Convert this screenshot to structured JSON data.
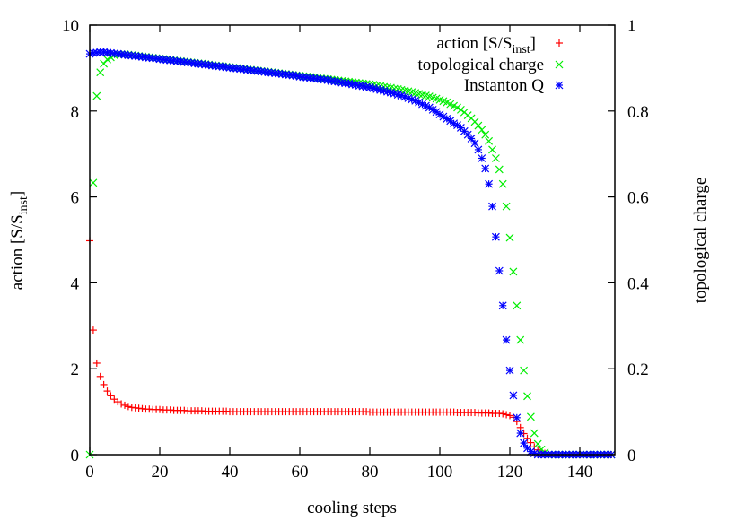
{
  "chart_data": {
    "type": "scatter",
    "xlabel": "cooling steps",
    "ylabel": {
      "main": "action [S/S",
      "sub": "inst",
      "end": "]"
    },
    "y2label": "topological charge",
    "xlim": [
      0,
      150
    ],
    "ylim": [
      0,
      10
    ],
    "y2lim": [
      0,
      1
    ],
    "grid": false,
    "legend_placement": "top-right",
    "x_ticks": [
      "0",
      "20",
      "40",
      "60",
      "80",
      "100",
      "120",
      "140"
    ],
    "x_tick_values": [
      0,
      20,
      40,
      60,
      80,
      100,
      120,
      140
    ],
    "y_ticks": [
      "0",
      "2",
      "4",
      "6",
      "8",
      "10"
    ],
    "y_tick_values": [
      0,
      2,
      4,
      6,
      8,
      10
    ],
    "y2_ticks": [
      "0",
      "0.2",
      "0.4",
      "0.6",
      "0.8",
      "1"
    ],
    "y2_tick_values": [
      0,
      0.2,
      0.4,
      0.6,
      0.8,
      1
    ],
    "x_start": 0,
    "x_step": 1,
    "series": [
      {
        "name": {
          "main": "action [S/S",
          "sub": "inst",
          "end": "]"
        },
        "axis": "y",
        "marker": "plus",
        "color": "#ff0000",
        "values": [
          4.98,
          2.9,
          2.13,
          1.82,
          1.63,
          1.48,
          1.37,
          1.29,
          1.23,
          1.18,
          1.15,
          1.12,
          1.1,
          1.09,
          1.08,
          1.07,
          1.06,
          1.06,
          1.05,
          1.05,
          1.05,
          1.04,
          1.04,
          1.04,
          1.03,
          1.03,
          1.03,
          1.03,
          1.02,
          1.02,
          1.02,
          1.02,
          1.02,
          1.01,
          1.01,
          1.01,
          1.01,
          1.01,
          1.01,
          1.01,
          1.0,
          1.0,
          1.0,
          1.0,
          1.0,
          1.0,
          1.0,
          1.0,
          1.0,
          1.0,
          1.0,
          1.0,
          1.0,
          1.0,
          1.0,
          1.0,
          1.0,
          1.0,
          1.0,
          1.0,
          1.0,
          1.0,
          1.0,
          1.0,
          1.0,
          1.0,
          1.0,
          1.0,
          1.0,
          1.0,
          1.0,
          1.0,
          1.0,
          1.0,
          1.0,
          1.0,
          1.0,
          1.0,
          1.0,
          1.0,
          0.99,
          0.99,
          0.99,
          0.99,
          0.99,
          0.99,
          0.99,
          0.99,
          0.99,
          0.99,
          0.99,
          0.99,
          0.99,
          0.99,
          0.99,
          0.99,
          0.99,
          0.99,
          0.99,
          0.99,
          0.99,
          0.99,
          0.99,
          0.99,
          0.99,
          0.98,
          0.98,
          0.98,
          0.98,
          0.98,
          0.98,
          0.97,
          0.97,
          0.97,
          0.97,
          0.96,
          0.96,
          0.96,
          0.95,
          0.93,
          0.91,
          0.87,
          0.77,
          0.63,
          0.49,
          0.38,
          0.28,
          0.18,
          0.11,
          0.06,
          0.03,
          0.01,
          0,
          0,
          0,
          0,
          0,
          0,
          0,
          0,
          0,
          0,
          0,
          0,
          0,
          0,
          0,
          0,
          0,
          0
        ]
      },
      {
        "name": "topological charge",
        "axis": "y2",
        "marker": "cross",
        "color": "#00ee00",
        "values": [
          0,
          0.633,
          0.835,
          0.89,
          0.91,
          0.92,
          0.925,
          0.93,
          0.932,
          0.932,
          0.932,
          0.931,
          0.93,
          0.929,
          0.928,
          0.927,
          0.926,
          0.925,
          0.924,
          0.923,
          0.922,
          0.921,
          0.92,
          0.919,
          0.918,
          0.917,
          0.916,
          0.915,
          0.914,
          0.913,
          0.912,
          0.911,
          0.91,
          0.909,
          0.908,
          0.907,
          0.906,
          0.905,
          0.904,
          0.903,
          0.902,
          0.901,
          0.9,
          0.899,
          0.898,
          0.897,
          0.896,
          0.895,
          0.894,
          0.893,
          0.892,
          0.891,
          0.89,
          0.889,
          0.888,
          0.887,
          0.886,
          0.885,
          0.884,
          0.883,
          0.882,
          0.881,
          0.88,
          0.879,
          0.878,
          0.877,
          0.876,
          0.875,
          0.874,
          0.873,
          0.872,
          0.871,
          0.87,
          0.869,
          0.868,
          0.867,
          0.866,
          0.865,
          0.864,
          0.863,
          0.862,
          0.861,
          0.859,
          0.858,
          0.856,
          0.855,
          0.854,
          0.852,
          0.851,
          0.849,
          0.848,
          0.846,
          0.844,
          0.842,
          0.84,
          0.838,
          0.836,
          0.834,
          0.831,
          0.829,
          0.826,
          0.823,
          0.82,
          0.816,
          0.812,
          0.808,
          0.803,
          0.797,
          0.79,
          0.783,
          0.775,
          0.766,
          0.756,
          0.745,
          0.73,
          0.71,
          0.69,
          0.664,
          0.63,
          0.578,
          0.505,
          0.426,
          0.347,
          0.267,
          0.196,
          0.136,
          0.088,
          0.05,
          0.025,
          0.012,
          0.005,
          0,
          0,
          0,
          0,
          0,
          0,
          0,
          0,
          0,
          0,
          0,
          0,
          0,
          0,
          0,
          0,
          0,
          0,
          0
        ]
      },
      {
        "name": "Instanton Q",
        "axis": "y2",
        "marker": "star",
        "color": "#0000ff",
        "values": [
          0.933,
          0.935,
          0.936,
          0.937,
          0.937,
          0.936,
          0.935,
          0.934,
          0.933,
          0.932,
          0.931,
          0.93,
          0.929,
          0.928,
          0.927,
          0.926,
          0.925,
          0.924,
          0.923,
          0.922,
          0.921,
          0.92,
          0.919,
          0.918,
          0.917,
          0.916,
          0.915,
          0.914,
          0.913,
          0.912,
          0.911,
          0.91,
          0.909,
          0.908,
          0.907,
          0.906,
          0.905,
          0.904,
          0.903,
          0.902,
          0.901,
          0.9,
          0.899,
          0.898,
          0.897,
          0.896,
          0.895,
          0.894,
          0.893,
          0.892,
          0.891,
          0.89,
          0.889,
          0.888,
          0.887,
          0.886,
          0.885,
          0.884,
          0.883,
          0.882,
          0.88,
          0.879,
          0.878,
          0.877,
          0.876,
          0.875,
          0.874,
          0.873,
          0.872,
          0.87,
          0.869,
          0.868,
          0.866,
          0.865,
          0.864,
          0.862,
          0.861,
          0.859,
          0.858,
          0.856,
          0.855,
          0.853,
          0.851,
          0.849,
          0.847,
          0.845,
          0.843,
          0.841,
          0.838,
          0.836,
          0.833,
          0.83,
          0.827,
          0.824,
          0.82,
          0.816,
          0.812,
          0.808,
          0.803,
          0.798,
          0.792,
          0.787,
          0.782,
          0.777,
          0.771,
          0.767,
          0.761,
          0.753,
          0.745,
          0.736,
          0.725,
          0.71,
          0.69,
          0.666,
          0.63,
          0.578,
          0.507,
          0.428,
          0.347,
          0.267,
          0.196,
          0.138,
          0.086,
          0.05,
          0.027,
          0.015,
          0.007,
          0.003,
          0,
          0,
          0,
          0,
          0,
          0,
          0,
          0,
          0,
          0,
          0,
          0,
          0,
          0,
          0,
          0,
          0,
          0,
          0,
          0,
          0,
          0
        ]
      }
    ]
  }
}
